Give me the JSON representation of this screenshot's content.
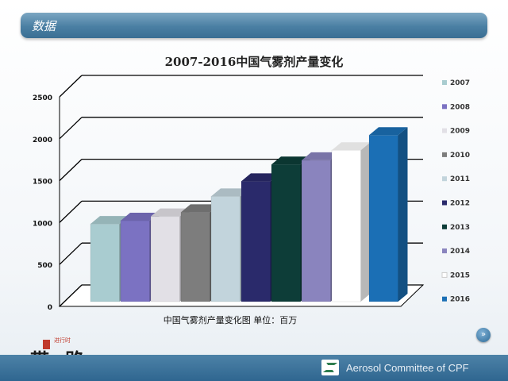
{
  "header": {
    "title": "数据"
  },
  "chart_data": {
    "type": "bar",
    "title": "2007-2016中国气雾剂产量变化",
    "caption": "中国气雾剂产量变化图    单位：百万",
    "xlabel": "",
    "ylabel": "",
    "categories": [
      "2007",
      "2008",
      "2009",
      "2010",
      "2011",
      "2012",
      "2013",
      "2014",
      "2015",
      "2016"
    ],
    "values": [
      1040,
      1080,
      1130,
      1180,
      1370,
      1550,
      1750,
      1800,
      1920,
      2100
    ],
    "colors": [
      "#a9ccd0",
      "#7b72c2",
      "#e2e0e6",
      "#7d7d7d",
      "#c2d4dc",
      "#2a2a6b",
      "#0d3d38",
      "#8a84be",
      "#ffffff",
      "#1b6fb5"
    ],
    "yticks": [
      0,
      500,
      1000,
      1500,
      2000,
      2500
    ],
    "ylim": [
      0,
      2500
    ],
    "legend_position": "right",
    "grid": true
  },
  "footer": {
    "org": "Aerosol Committee of CPF"
  },
  "logo": {
    "text": "一带一路",
    "small_text": "进行时"
  },
  "nav": {
    "next_symbol": "»"
  }
}
